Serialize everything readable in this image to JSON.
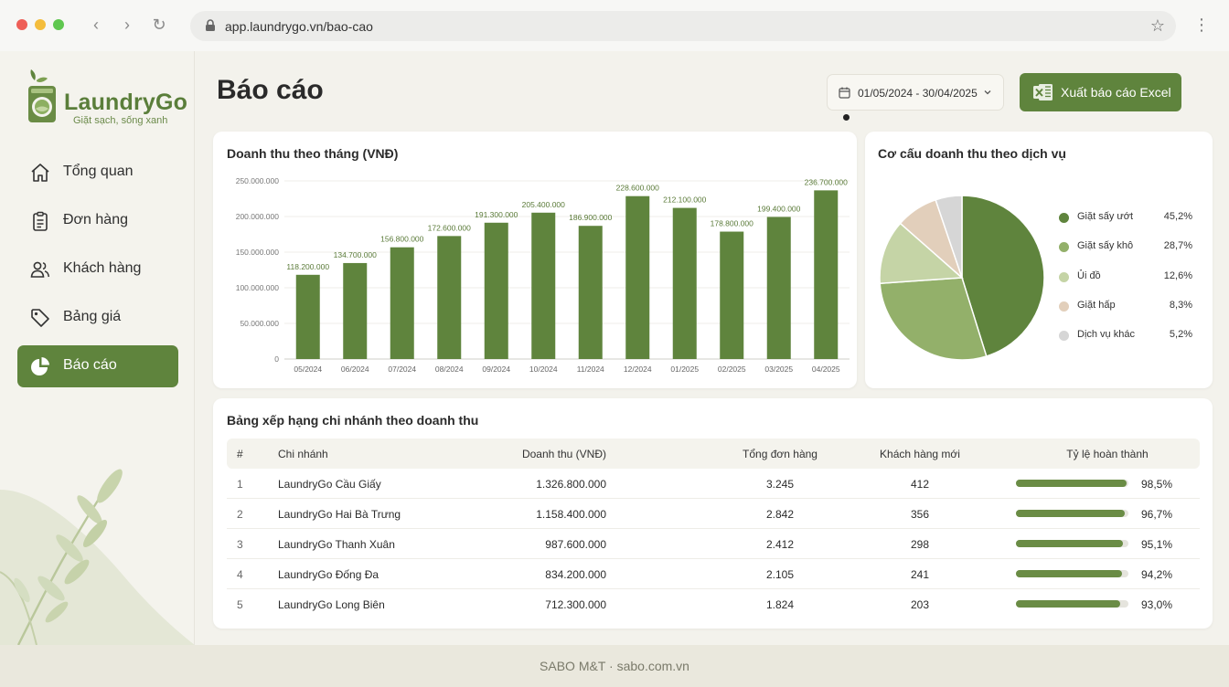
{
  "browser": {
    "url": "app.laundrygo.vn/bao-cao"
  },
  "brand": {
    "name": "LaundryGo",
    "tagline": "Giặt sạch, sống xanh",
    "color": "#5f843d"
  },
  "sidebar": {
    "items": [
      {
        "label": "Tổng quan",
        "icon": "home-icon",
        "active": false
      },
      {
        "label": "Đơn hàng",
        "icon": "clipboard-icon",
        "active": false
      },
      {
        "label": "Khách hàng",
        "icon": "users-icon",
        "active": false
      },
      {
        "label": "Bảng giá",
        "icon": "tag-icon",
        "active": false
      },
      {
        "label": "Báo cáo",
        "icon": "pie-chart-icon",
        "active": true
      }
    ]
  },
  "header": {
    "title": "Báo cáo",
    "date_range": "01/05/2024 - 30/04/2025",
    "export_label": "Xuất báo cáo Excel"
  },
  "revenue_chart": {
    "title": "Doanh thu theo tháng (VNĐ)"
  },
  "service_chart": {
    "title": "Cơ cấu doanh thu theo dịch vụ"
  },
  "chart_data": [
    {
      "type": "bar",
      "title": "Doanh thu theo tháng (VNĐ)",
      "categories": [
        "05/2024",
        "06/2024",
        "07/2024",
        "08/2024",
        "09/2024",
        "10/2024",
        "11/2024",
        "12/2024",
        "01/2025",
        "02/2025",
        "03/2025",
        "04/2025"
      ],
      "values": [
        118200000,
        134700000,
        156800000,
        172600000,
        191300000,
        205400000,
        186900000,
        228600000,
        212100000,
        178800000,
        199400000,
        236700000
      ],
      "value_labels": [
        "118.200.000",
        "134.700.000",
        "156.800.000",
        "172.600.000",
        "191.300.000",
        "205.400.000",
        "186.900.000",
        "228.600.000",
        "212.100.000",
        "178.800.000",
        "199.400.000",
        "236.700.000"
      ],
      "ylim": [
        0,
        250000000
      ],
      "yticks": [
        0,
        50000000,
        100000000,
        150000000,
        200000000,
        250000000
      ],
      "ytick_labels": [
        "0",
        "50.000.000",
        "100.000.000",
        "150.000.000",
        "200.000.000",
        "250.000.000"
      ],
      "grid": true,
      "color": "#5f843d"
    },
    {
      "type": "pie",
      "title": "Cơ cấu doanh thu theo dịch vụ",
      "labels": [
        "Giặt sấy ướt",
        "Giặt sấy khô",
        "Ủi đồ",
        "Giặt hấp",
        "Dịch vụ khác"
      ],
      "values": [
        45.2,
        28.7,
        12.6,
        8.3,
        5.2
      ],
      "value_labels": [
        "45,2%",
        "28,7%",
        "12,6%",
        "8,3%",
        "5,2%"
      ],
      "colors": [
        "#5f843d",
        "#93b06a",
        "#c5d4a6",
        "#e2cfbb",
        "#d6d6d6"
      ],
      "legend": "right"
    }
  ],
  "branch_table": {
    "title": "Bảng xếp hạng chi nhánh theo doanh thu",
    "headers": {
      "rank": "#",
      "branch": "Chi nhánh",
      "revenue": "Doanh thu (VNĐ)",
      "orders": "Tổng đơn hàng",
      "new_customers": "Khách hàng mới",
      "completion": "Tỷ lệ hoàn thành"
    },
    "rows": [
      {
        "rank": "1",
        "branch": "LaundryGo Cầu Giấy",
        "revenue": "1.326.800.000",
        "orders": "3.245",
        "new_customers": "412",
        "completion": "98,5%",
        "completion_value": 0.985
      },
      {
        "rank": "2",
        "branch": "LaundryGo Hai Bà Trưng",
        "revenue": "1.158.400.000",
        "orders": "2.842",
        "new_customers": "356",
        "completion": "96,7%",
        "completion_value": 0.967
      },
      {
        "rank": "3",
        "branch": "LaundryGo Thanh Xuân",
        "revenue": "987.600.000",
        "orders": "2.412",
        "new_customers": "298",
        "completion": "95,1%",
        "completion_value": 0.951
      },
      {
        "rank": "4",
        "branch": "LaundryGo Đống Đa",
        "revenue": "834.200.000",
        "orders": "2.105",
        "new_customers": "241",
        "completion": "94,2%",
        "completion_value": 0.942
      },
      {
        "rank": "5",
        "branch": "LaundryGo Long Biên",
        "revenue": "712.300.000",
        "orders": "1.824",
        "new_customers": "203",
        "completion": "93,0%",
        "completion_value": 0.93
      }
    ]
  },
  "footer": {
    "text": "SABO M&T · sabo.com.vn"
  }
}
